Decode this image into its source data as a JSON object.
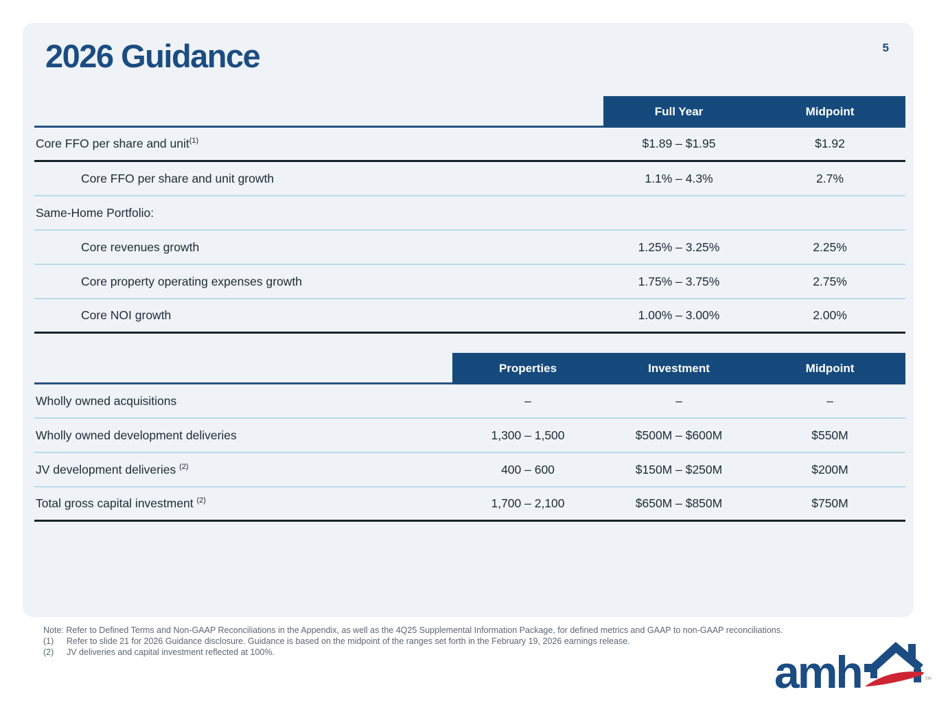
{
  "page_number": "5",
  "title": "2026 Guidance",
  "table1": {
    "headers": [
      "Full Year",
      "Midpoint"
    ],
    "rows": [
      {
        "label": "Core FFO per share and unit",
        "sup": "(1)",
        "sup_space": false,
        "indent": false,
        "divider": "dark",
        "values": [
          "$1.89 – $1.95",
          "$1.92"
        ]
      },
      {
        "label": "Core FFO per share and unit growth",
        "indent": true,
        "divider": "light",
        "values": [
          "1.1% – 4.3%",
          "2.7%"
        ]
      },
      {
        "label": "Same-Home Portfolio:",
        "indent": false,
        "divider": "light",
        "values": [
          "",
          ""
        ]
      },
      {
        "label": "Core revenues growth",
        "indent": true,
        "divider": "light",
        "values": [
          "1.25% – 3.25%",
          "2.25%"
        ]
      },
      {
        "label": "Core property operating expenses growth",
        "indent": true,
        "divider": "light",
        "values": [
          "1.75% – 3.75%",
          "2.75%"
        ]
      },
      {
        "label": "Core NOI growth",
        "indent": true,
        "divider": "dark",
        "values": [
          "1.00% – 3.00%",
          "2.00%"
        ]
      }
    ]
  },
  "table2": {
    "headers": [
      "Properties",
      "Investment",
      "Midpoint"
    ],
    "rows": [
      {
        "label": "Wholly owned acquisitions",
        "indent": false,
        "divider": "light",
        "values": [
          "–",
          "–",
          "–"
        ]
      },
      {
        "label": "Wholly owned development deliveries",
        "indent": false,
        "divider": "light",
        "values": [
          "1,300 – 1,500",
          "$500M – $600M",
          "$550M"
        ]
      },
      {
        "label": "JV development deliveries",
        "sup": "(2)",
        "sup_space": true,
        "indent": false,
        "divider": "light",
        "values": [
          "400 – 600",
          "$150M – $250M",
          "$200M"
        ]
      },
      {
        "label": "Total gross capital investment",
        "sup": "(2)",
        "sup_space": true,
        "indent": false,
        "divider": "dark",
        "values": [
          "1,700 – 2,100",
          "$650M – $850M",
          "$750M"
        ]
      }
    ]
  },
  "notes": {
    "note": "Note: Refer to Defined Terms and Non-GAAP Reconciliations in the Appendix, as well as the 4Q25 Supplemental Information Package, for defined metrics and GAAP to non-GAAP reconciliations.",
    "items": [
      {
        "num": "(1)",
        "text": "Refer to slide 21 for 2026 Guidance disclosure. Guidance is based on the midpoint of the ranges set forth in the February 19, 2026 earnings release."
      },
      {
        "num": "(2)",
        "text": "JV deliveries and capital investment reflected at 100%."
      }
    ]
  },
  "logo": {
    "text": "amh",
    "sm": "SM"
  },
  "colors": {
    "navy": "#164a7c",
    "title_blue": "#1b4c82",
    "header_underline": "#275380",
    "dark_line": "#1a222c",
    "light_line": "#bcdaea",
    "card_bg": "#eff3f7",
    "text": "#212b36",
    "notes_col": "#5c6670",
    "logo_red": "#ce2433"
  }
}
